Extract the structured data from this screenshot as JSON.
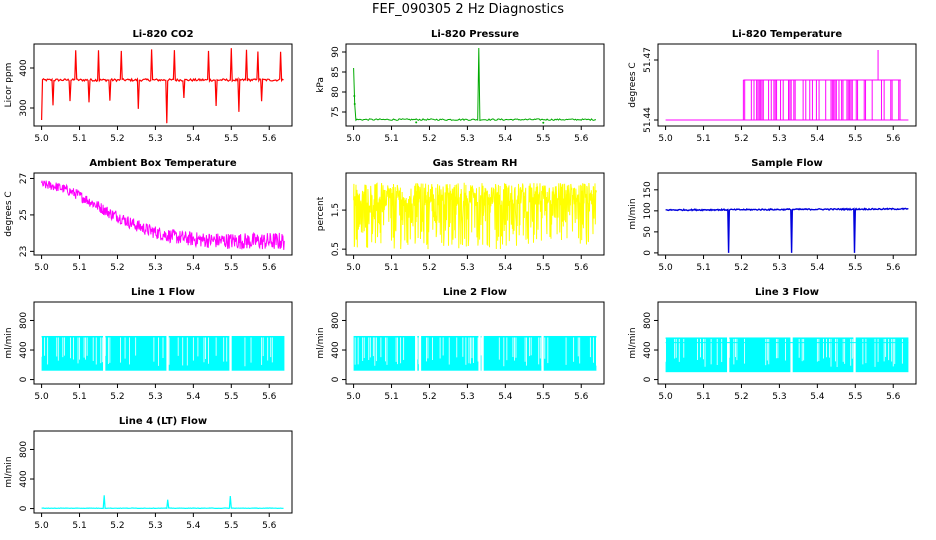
{
  "page_title": "FEF_090305  2 Hz Diagnostics",
  "chart_data": [
    {
      "type": "line",
      "title": "Li-820 CO2",
      "ylabel": "Licor ppm",
      "color": "#ff0000",
      "xlim": [
        4.98,
        5.66
      ],
      "ylim": [
        255,
        460
      ],
      "xticks": [
        "5.0",
        "5.1",
        "5.2",
        "5.3",
        "5.4",
        "5.5",
        "5.6"
      ],
      "yticks": [
        "300",
        "400"
      ],
      "ytick_values": [
        300,
        400
      ],
      "pattern": "co2",
      "x": [
        5.0,
        5.02,
        5.05,
        5.08,
        5.12,
        5.15,
        5.2,
        5.25,
        5.3,
        5.33,
        5.35,
        5.4,
        5.45,
        5.5,
        5.55,
        5.6,
        5.64
      ],
      "y": [
        370,
        372,
        370,
        371,
        372,
        371,
        370,
        371,
        370,
        372,
        371,
        370,
        371,
        372,
        370,
        371,
        372
      ]
    },
    {
      "type": "line",
      "title": "Li-820 Pressure",
      "ylabel": "kPa",
      "color": "#00aa00",
      "xlim": [
        4.98,
        5.66
      ],
      "ylim": [
        71.5,
        92
      ],
      "xticks": [
        "5.0",
        "5.1",
        "5.2",
        "5.3",
        "5.4",
        "5.5",
        "5.6"
      ],
      "yticks": [
        "75",
        "80",
        "85",
        "90"
      ],
      "ytick_values": [
        75,
        80,
        85,
        90
      ],
      "pattern": "pressure",
      "x": [
        5.0,
        5.01,
        5.1,
        5.2,
        5.3,
        5.33,
        5.34,
        5.4,
        5.5,
        5.6,
        5.64
      ],
      "y": [
        86,
        73.5,
        73.2,
        73.1,
        73.1,
        91,
        73.2,
        73.1,
        73.0,
        73.0,
        73.0
      ]
    },
    {
      "type": "line",
      "title": "Li-820 Temperature",
      "ylabel": "degrees C",
      "color": "#ff00ff",
      "xlim": [
        4.98,
        5.66
      ],
      "ylim": [
        51.437,
        51.478
      ],
      "xticks": [
        "5.0",
        "5.1",
        "5.2",
        "5.3",
        "5.4",
        "5.5",
        "5.6"
      ],
      "yticks": [
        "51.44",
        "51.47"
      ],
      "ytick_values": [
        51.44,
        51.47
      ],
      "pattern": "temperature",
      "x": [
        5.0,
        5.2,
        5.21,
        5.3,
        5.4,
        5.5,
        5.56,
        5.6,
        5.64
      ],
      "y": [
        51.44,
        51.44,
        51.46,
        51.46,
        51.46,
        51.46,
        51.475,
        51.46,
        51.44
      ]
    },
    {
      "type": "line",
      "title": "Ambient Box Temperature",
      "ylabel": "degrees C",
      "color": "#ff00ff",
      "xlim": [
        4.98,
        5.66
      ],
      "ylim": [
        22.8,
        27.3
      ],
      "xticks": [
        "5.0",
        "5.1",
        "5.2",
        "5.3",
        "5.4",
        "5.5",
        "5.6"
      ],
      "yticks": [
        "23",
        "25",
        "27"
      ],
      "ytick_values": [
        23,
        25,
        27
      ],
      "pattern": "ambient",
      "x": [
        5.0,
        5.05,
        5.1,
        5.15,
        5.2,
        5.25,
        5.3,
        5.35,
        5.4,
        5.45,
        5.5,
        5.55,
        5.6,
        5.64
      ],
      "y": [
        26.7,
        26.2,
        25.6,
        25.0,
        24.5,
        24.1,
        23.9,
        23.8,
        23.7,
        23.6,
        23.6,
        23.5,
        23.5,
        23.5
      ]
    },
    {
      "type": "line",
      "title": "Gas Stream RH",
      "ylabel": "percent",
      "color": "#ffff00",
      "xlim": [
        4.98,
        5.66
      ],
      "ylim": [
        0.35,
        2.45
      ],
      "xticks": [
        "5.0",
        "5.1",
        "5.2",
        "5.3",
        "5.4",
        "5.5",
        "5.6"
      ],
      "yticks": [
        "0.5",
        "1.5"
      ],
      "ytick_values": [
        0.5,
        1.5
      ],
      "pattern": "rh",
      "x": [
        5.0,
        5.1,
        5.2,
        5.3,
        5.4,
        5.5,
        5.6,
        5.64
      ],
      "y": [
        1.9,
        1.9,
        1.9,
        1.9,
        1.9,
        1.9,
        1.9,
        1.9
      ]
    },
    {
      "type": "line",
      "title": "Sample Flow",
      "ylabel": "ml/min",
      "color": "#0000dd",
      "xlim": [
        4.98,
        5.66
      ],
      "ylim": [
        -5,
        190
      ],
      "xticks": [
        "5.0",
        "5.1",
        "5.2",
        "5.3",
        "5.4",
        "5.5",
        "5.6"
      ],
      "yticks": [
        "0",
        "50",
        "100",
        "150"
      ],
      "ytick_values": [
        0,
        50,
        100,
        150
      ],
      "pattern": "sample",
      "x": [
        5.0,
        5.1,
        5.16,
        5.17,
        5.2,
        5.3,
        5.33,
        5.34,
        5.4,
        5.49,
        5.5,
        5.6,
        5.64
      ],
      "y": [
        102,
        102,
        104,
        0,
        103,
        103,
        103,
        0,
        103,
        103,
        0,
        103,
        104
      ]
    },
    {
      "type": "line",
      "title": "Line 1 Flow",
      "ylabel": "ml/min",
      "color": "#00ffff",
      "xlim": [
        4.98,
        5.66
      ],
      "ylim": [
        -60,
        1050
      ],
      "xticks": [
        "5.0",
        "5.1",
        "5.2",
        "5.3",
        "5.4",
        "5.5",
        "5.6"
      ],
      "yticks": [
        "0",
        "400",
        "800"
      ],
      "ytick_values": [
        0,
        400,
        800
      ],
      "pattern": "flow1",
      "x": [
        5.0,
        5.64
      ],
      "y": [
        560,
        560
      ]
    },
    {
      "type": "line",
      "title": "Line 2 Flow",
      "ylabel": "ml/min",
      "color": "#00ffff",
      "xlim": [
        4.98,
        5.66
      ],
      "ylim": [
        -60,
        1050
      ],
      "xticks": [
        "5.0",
        "5.1",
        "5.2",
        "5.3",
        "5.4",
        "5.5",
        "5.6"
      ],
      "yticks": [
        "0",
        "400",
        "800"
      ],
      "ytick_values": [
        0,
        400,
        800
      ],
      "pattern": "flow2",
      "x": [
        5.0,
        5.64
      ],
      "y": [
        560,
        560
      ]
    },
    {
      "type": "line",
      "title": "Line 3 Flow",
      "ylabel": "ml/min",
      "color": "#00ffff",
      "xlim": [
        4.98,
        5.66
      ],
      "ylim": [
        -60,
        1050
      ],
      "xticks": [
        "5.0",
        "5.1",
        "5.2",
        "5.3",
        "5.4",
        "5.5",
        "5.6"
      ],
      "yticks": [
        "0",
        "400",
        "800"
      ],
      "ytick_values": [
        0,
        400,
        800
      ],
      "pattern": "flow3",
      "x": [
        5.0,
        5.64
      ],
      "y": [
        540,
        540
      ]
    },
    {
      "type": "line",
      "title": "Line 4 (LT) Flow",
      "ylabel": "ml/min",
      "color": "#00ffff",
      "xlim": [
        4.98,
        5.66
      ],
      "ylim": [
        -60,
        1050
      ],
      "xticks": [
        "5.0",
        "5.1",
        "5.2",
        "5.3",
        "5.4",
        "5.5",
        "5.6"
      ],
      "yticks": [
        "0",
        "400",
        "800"
      ],
      "ytick_values": [
        0,
        400,
        800
      ],
      "pattern": "flow4",
      "x": [
        5.0,
        5.166,
        5.17,
        5.33,
        5.335,
        5.497,
        5.5,
        5.64
      ],
      "y": [
        5,
        180,
        5,
        120,
        5,
        170,
        5,
        5
      ]
    }
  ]
}
